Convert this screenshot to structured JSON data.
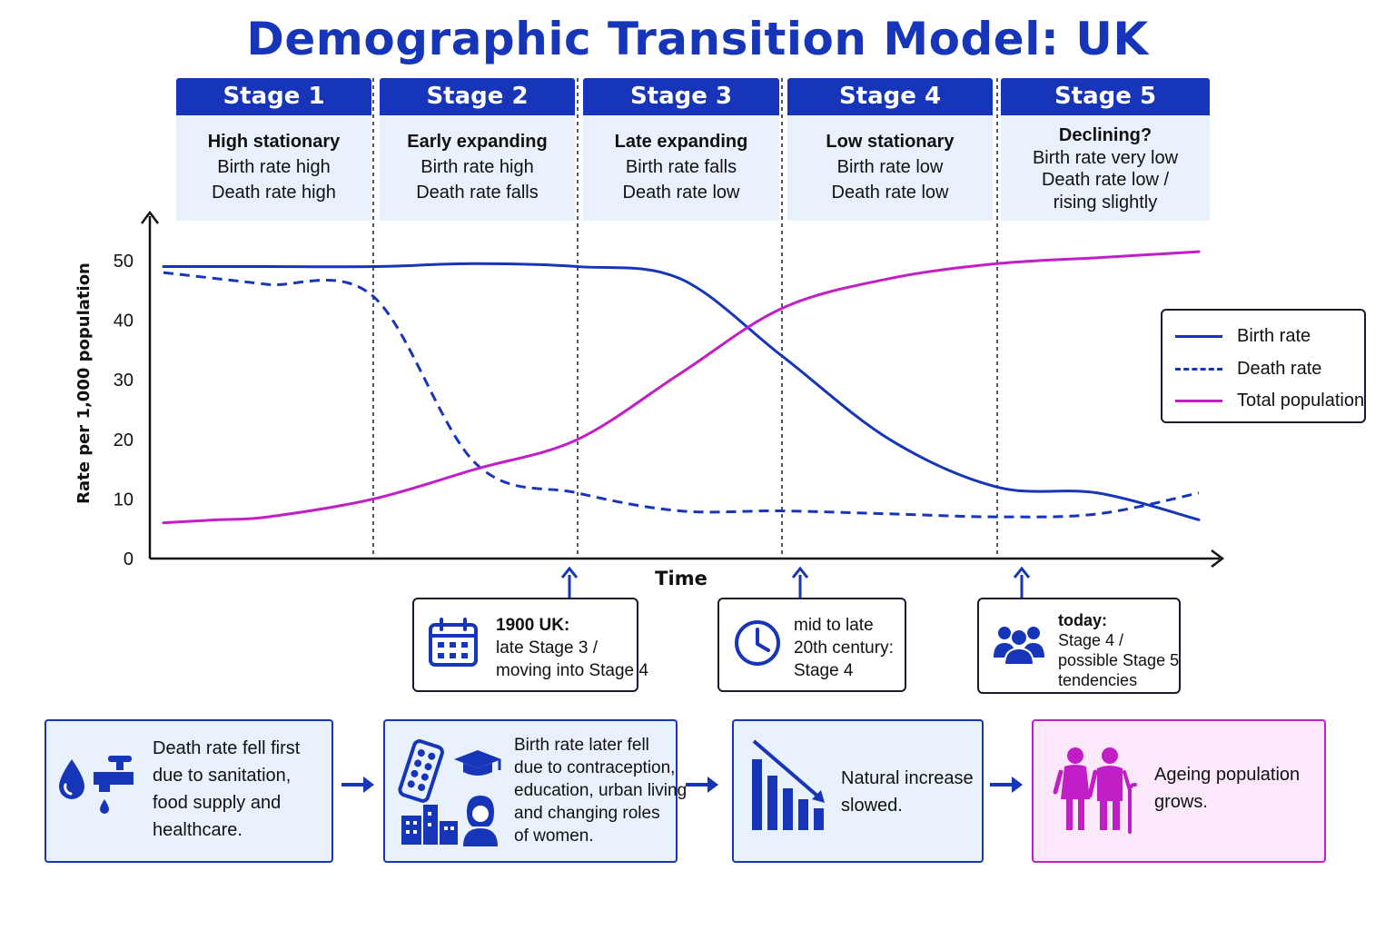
{
  "title": "Demographic Transition Model: UK",
  "stages": [
    {
      "name": "Stage 1",
      "lines": [
        "High stationary",
        "Birth rate high",
        "Death rate high"
      ]
    },
    {
      "name": "Stage 2",
      "lines": [
        "Early expanding",
        "Birth rate high",
        "Death rate falls"
      ]
    },
    {
      "name": "Stage 3",
      "lines": [
        "Late expanding",
        "Birth rate falls",
        "Death rate low"
      ]
    },
    {
      "name": "Stage 4",
      "lines": [
        "Low stationary",
        "Birth rate low",
        "Death rate low"
      ]
    },
    {
      "name": "Stage 5",
      "lines": [
        "Declining?",
        "Birth rate very low",
        "Death rate low /",
        "rising slightly"
      ]
    }
  ],
  "chart_data": {
    "type": "line",
    "title": "Demographic Transition Model: UK",
    "xlabel": "Time",
    "ylabel": "Rate per 1,000 population",
    "ylim": [
      0,
      50
    ],
    "yticks": [
      0,
      10,
      20,
      30,
      40,
      50
    ],
    "x": [
      0,
      0.25,
      0.5,
      1,
      1.5,
      2,
      2.5,
      3,
      3.5,
      4,
      4.5,
      5
    ],
    "series": [
      {
        "name": "Birth rate",
        "style": "solid",
        "color": "#1635b8",
        "values": [
          49,
          49,
          49,
          49,
          49.5,
          49,
          47,
          34,
          20,
          12,
          11,
          6.5
        ]
      },
      {
        "name": "Death rate",
        "style": "dashed",
        "color": "#1635b8",
        "values": [
          48,
          47,
          46,
          44,
          16,
          11,
          8,
          8,
          7.5,
          7,
          7.5,
          11
        ]
      },
      {
        "name": "Total population",
        "style": "solid",
        "color": "#c21ec7",
        "values": [
          6,
          6.5,
          7,
          10,
          15,
          20,
          31,
          42,
          47,
          49.5,
          50.5,
          51.5
        ]
      }
    ],
    "stage_boundaries": [
      1,
      2,
      3,
      4
    ],
    "legend": "right",
    "grid": false
  },
  "legend": [
    {
      "label": "Birth rate",
      "style": "solid",
      "color": "#1635b8"
    },
    {
      "label": "Death rate",
      "style": "dashed",
      "color": "#1635b8"
    },
    {
      "label": "Total population",
      "style": "solid",
      "color": "#c21ec7"
    }
  ],
  "callouts": [
    {
      "icon": "calendar-icon",
      "lines": [
        "1900 UK:",
        "late Stage 3 /",
        "moving into Stage 4"
      ]
    },
    {
      "icon": "clock-icon",
      "lines": [
        "mid to late",
        "20th century:",
        "Stage 4"
      ]
    },
    {
      "icon": "people-icon",
      "lines": [
        "today:",
        "Stage 4 /",
        "possible Stage 5",
        "tendencies"
      ]
    }
  ],
  "factors": [
    {
      "icon": "water-tap-icon",
      "lines": [
        "Death rate fell first",
        "due to sanitation,",
        "food supply and",
        "healthcare."
      ]
    },
    {
      "icon": "contraception-education-icon",
      "lines": [
        "Birth rate later fell",
        "due to contraception,",
        "education, urban living",
        "and changing roles",
        "of women."
      ]
    },
    {
      "icon": "declining-bar-chart-icon",
      "lines": [
        "Natural increase",
        "slowed."
      ]
    },
    {
      "icon": "elderly-couple-icon",
      "lines": [
        "Ageing population",
        "grows."
      ]
    }
  ],
  "colors": {
    "blue": "#1635b8",
    "magenta": "#c21ec7",
    "panel": "#e9f2fc",
    "pink_panel": "#fbe9fb"
  }
}
